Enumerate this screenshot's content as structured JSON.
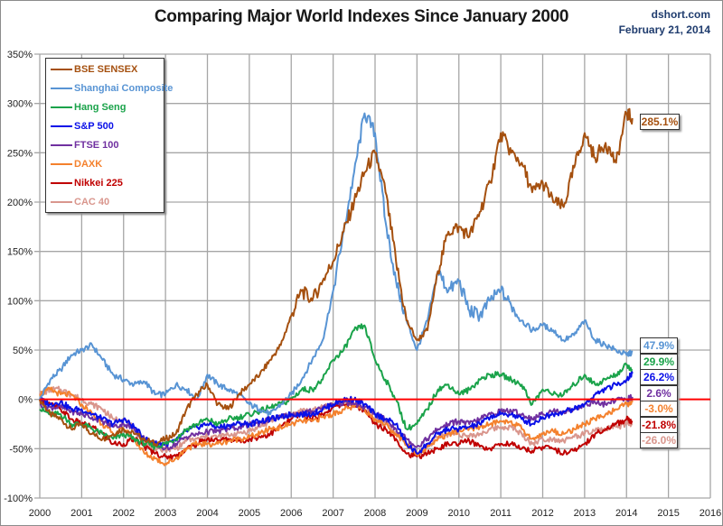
{
  "header": {
    "title": "Comparing Major World Indexes Since January 2000",
    "source": "dshort.com",
    "date": "February 21, 2014"
  },
  "chart_data": {
    "type": "line",
    "title": "Comparing Major World Indexes Since January 2000",
    "xlabel": "",
    "ylabel": "",
    "x_range": [
      2000,
      2016
    ],
    "ylim": [
      -100,
      350
    ],
    "x_ticks": [
      "2000",
      "2001",
      "2002",
      "2003",
      "2004",
      "2005",
      "2006",
      "2007",
      "2008",
      "2009",
      "2010",
      "2011",
      "2012",
      "2013",
      "2014",
      "2015",
      "2016"
    ],
    "y_ticks": [
      "350%",
      "300%",
      "250%",
      "200%",
      "150%",
      "100%",
      "50%",
      "0%",
      "-50%",
      "-100%"
    ],
    "y_tick_values": [
      350,
      300,
      250,
      200,
      150,
      100,
      50,
      0,
      -50,
      -100
    ],
    "grid": true,
    "legend_position": "top-left",
    "reference_line": {
      "y": 0,
      "color": "#ff0000"
    },
    "x": [
      2000.0,
      2000.25,
      2000.5,
      2000.75,
      2001.0,
      2001.25,
      2001.5,
      2001.75,
      2002.0,
      2002.25,
      2002.5,
      2002.75,
      2003.0,
      2003.25,
      2003.5,
      2003.75,
      2004.0,
      2004.25,
      2004.5,
      2004.75,
      2005.0,
      2005.25,
      2005.5,
      2005.75,
      2006.0,
      2006.25,
      2006.5,
      2006.75,
      2007.0,
      2007.25,
      2007.5,
      2007.75,
      2008.0,
      2008.25,
      2008.5,
      2008.75,
      2009.0,
      2009.25,
      2009.5,
      2009.75,
      2010.0,
      2010.25,
      2010.5,
      2010.75,
      2011.0,
      2011.25,
      2011.5,
      2011.75,
      2012.0,
      2012.25,
      2012.5,
      2012.75,
      2013.0,
      2013.25,
      2013.5,
      2013.75,
      2014.0,
      2014.14
    ],
    "series": [
      {
        "name": "BSE SENSEX",
        "color": "#a5500f",
        "end_label": "285.1%",
        "values": [
          0,
          -15,
          -20,
          -30,
          -25,
          -35,
          -40,
          -35,
          -30,
          -35,
          -40,
          -45,
          -40,
          -35,
          -10,
          5,
          15,
          -5,
          -10,
          5,
          15,
          25,
          40,
          55,
          85,
          110,
          100,
          120,
          140,
          170,
          200,
          230,
          250,
          210,
          140,
          80,
          60,
          70,
          130,
          170,
          175,
          165,
          190,
          220,
          270,
          250,
          240,
          210,
          220,
          200,
          195,
          235,
          270,
          245,
          260,
          240,
          290,
          285.1
        ]
      },
      {
        "name": "Shanghai Composite",
        "color": "#5894d4",
        "end_label": "47.9%",
        "values": [
          0,
          20,
          30,
          45,
          50,
          55,
          40,
          25,
          20,
          15,
          18,
          5,
          5,
          15,
          10,
          0,
          25,
          15,
          10,
          5,
          -5,
          -10,
          -15,
          -5,
          5,
          20,
          40,
          60,
          110,
          170,
          230,
          290,
          270,
          180,
          120,
          80,
          50,
          80,
          130,
          110,
          120,
          90,
          85,
          100,
          110,
          95,
          80,
          70,
          75,
          70,
          60,
          65,
          80,
          60,
          55,
          50,
          45,
          47.9
        ]
      },
      {
        "name": "Hang Seng",
        "color": "#1aa34a",
        "end_label": "29.9%",
        "values": [
          -10,
          -15,
          -15,
          -25,
          -25,
          -30,
          -35,
          -40,
          -35,
          -40,
          -45,
          -48,
          -45,
          -40,
          -30,
          -25,
          -20,
          -25,
          -20,
          -18,
          -15,
          -12,
          -8,
          -5,
          0,
          10,
          10,
          20,
          40,
          50,
          70,
          75,
          40,
          20,
          0,
          -30,
          -25,
          -10,
          10,
          15,
          5,
          10,
          20,
          25,
          25,
          20,
          15,
          -5,
          10,
          5,
          5,
          15,
          25,
          15,
          20,
          25,
          35,
          29.9
        ]
      },
      {
        "name": "S&P 500",
        "color": "#0a10e8",
        "end_label": "26.2%",
        "values": [
          0,
          -5,
          -2,
          -10,
          -10,
          -15,
          -20,
          -25,
          -20,
          -28,
          -40,
          -45,
          -45,
          -42,
          -32,
          -28,
          -25,
          -28,
          -27,
          -24,
          -25,
          -22,
          -20,
          -18,
          -15,
          -15,
          -15,
          -10,
          -5,
          0,
          0,
          -5,
          -15,
          -20,
          -25,
          -45,
          -55,
          -45,
          -35,
          -30,
          -30,
          -28,
          -25,
          -18,
          -15,
          -15,
          -20,
          -25,
          -18,
          -15,
          -12,
          -10,
          -5,
          5,
          10,
          15,
          20,
          26.2
        ]
      },
      {
        "name": "FTSE 100",
        "color": "#7030a0",
        "end_label": "2.6%",
        "values": [
          -5,
          -8,
          -8,
          -12,
          -15,
          -18,
          -22,
          -28,
          -25,
          -30,
          -40,
          -45,
          -50,
          -45,
          -38,
          -35,
          -33,
          -32,
          -30,
          -28,
          -26,
          -24,
          -20,
          -18,
          -15,
          -14,
          -12,
          -8,
          -5,
          -3,
          -5,
          -8,
          -15,
          -20,
          -30,
          -40,
          -48,
          -40,
          -30,
          -25,
          -22,
          -25,
          -20,
          -15,
          -12,
          -12,
          -15,
          -20,
          -15,
          -12,
          -12,
          -10,
          -5,
          -3,
          -5,
          0,
          0,
          2.6
        ]
      },
      {
        "name": "DAXK",
        "color": "#f4812d",
        "end_label": "-3.0%",
        "values": [
          5,
          10,
          5,
          5,
          -5,
          -15,
          -25,
          -35,
          -30,
          -40,
          -55,
          -60,
          -65,
          -60,
          -50,
          -45,
          -45,
          -45,
          -42,
          -40,
          -38,
          -35,
          -30,
          -28,
          -25,
          -22,
          -22,
          -18,
          -15,
          -10,
          -8,
          -10,
          -20,
          -25,
          -35,
          -45,
          -55,
          -48,
          -40,
          -35,
          -32,
          -30,
          -28,
          -25,
          -22,
          -22,
          -30,
          -40,
          -35,
          -32,
          -35,
          -30,
          -25,
          -20,
          -15,
          -10,
          -5,
          -3.0
        ]
      },
      {
        "name": "Nikkei 225",
        "color": "#c00000",
        "end_label": "-21.8%",
        "values": [
          0,
          -5,
          -10,
          -20,
          -25,
          -28,
          -35,
          -45,
          -45,
          -40,
          -48,
          -55,
          -58,
          -58,
          -50,
          -45,
          -40,
          -42,
          -40,
          -42,
          -40,
          -38,
          -35,
          -28,
          -20,
          -15,
          -20,
          -15,
          -8,
          -5,
          -5,
          -12,
          -25,
          -30,
          -40,
          -55,
          -58,
          -55,
          -50,
          -45,
          -45,
          -42,
          -48,
          -50,
          -45,
          -45,
          -50,
          -52,
          -48,
          -50,
          -55,
          -52,
          -45,
          -35,
          -30,
          -25,
          -20,
          -21.8
        ]
      },
      {
        "name": "CAC 40",
        "color": "#d9968d",
        "end_label": "-26.0%",
        "values": [
          5,
          10,
          10,
          5,
          0,
          -5,
          -10,
          -20,
          -20,
          -30,
          -45,
          -50,
          -52,
          -50,
          -42,
          -40,
          -38,
          -38,
          -36,
          -34,
          -32,
          -28,
          -22,
          -18,
          -15,
          -12,
          -12,
          -8,
          -5,
          -2,
          -5,
          -10,
          -20,
          -25,
          -35,
          -45,
          -55,
          -48,
          -38,
          -35,
          -35,
          -38,
          -35,
          -30,
          -28,
          -28,
          -35,
          -45,
          -40,
          -40,
          -42,
          -38,
          -35,
          -32,
          -30,
          -28,
          -25,
          -26.0
        ]
      }
    ]
  }
}
